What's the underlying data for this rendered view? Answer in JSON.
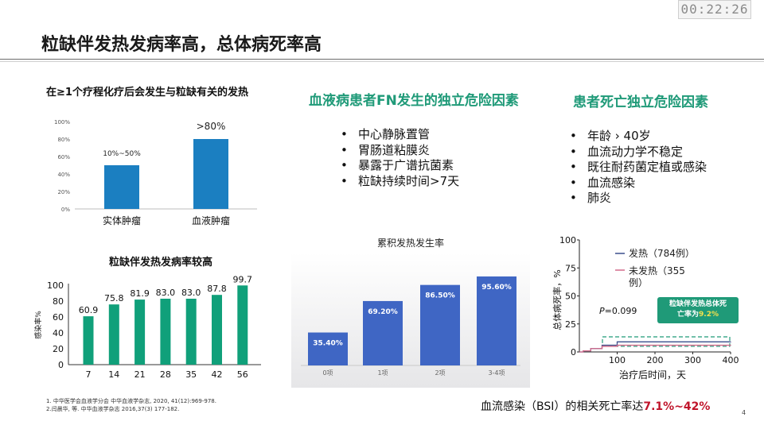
{
  "timer": "00:22:26",
  "title": "粒缺伴发热发病率高，总体病死率高",
  "chart1": {
    "subtitle": "在≥1个疗程化疗后会发生与粒缺有关的发热",
    "chart_data": {
      "type": "bar",
      "categories": [
        "实体肿瘤",
        "血液肿瘤"
      ],
      "values": [
        50,
        80
      ],
      "labels": [
        "10%~50%",
        ">80%"
      ],
      "yticks": [
        "0%",
        "20%",
        "40%",
        "60%",
        "80%",
        "100%"
      ],
      "ylim": [
        0,
        100
      ],
      "color": "#1b7fc1"
    }
  },
  "chart2": {
    "chart_data": {
      "type": "bar",
      "title": "粒缺伴发热发病率较高",
      "categories": [
        "7",
        "14",
        "21",
        "28",
        "35",
        "42",
        "56"
      ],
      "values": [
        60.9,
        75.8,
        81.9,
        83.0,
        83.0,
        87.8,
        99.7
      ],
      "labels": [
        "60.9",
        "75.8",
        "81.9",
        "83.0",
        "83.0",
        "87.8",
        "99.7"
      ],
      "ylabel": "感染率%",
      "yticks": [
        "0",
        "20",
        "40",
        "60",
        "80",
        "100"
      ],
      "ylim": [
        0,
        100
      ],
      "color": "#10a07a"
    }
  },
  "fn_risk": {
    "heading": "血液病患者FN发生的独立危险因素",
    "items": [
      "中心静脉置管",
      "胃肠道粘膜炎",
      "暴露于广谱抗菌素",
      "粒缺持续时间>7天"
    ]
  },
  "death_risk": {
    "heading": "患者死亡独立危险因素",
    "items": [
      "年龄 › 40岁",
      "血流动力学不稳定",
      "既往耐药菌定植或感染",
      "血流感染",
      "肺炎"
    ]
  },
  "chart3": {
    "chart_data": {
      "type": "bar",
      "title": "累积发热发生率",
      "categories": [
        "0项",
        "1项",
        "2项",
        "3-4项"
      ],
      "values": [
        35.4,
        69.2,
        86.5,
        95.6
      ],
      "labels": [
        "35.40%",
        "69.20%",
        "86.50%",
        "95.60%"
      ],
      "ylim": [
        0,
        100
      ],
      "color": "#3f66c4"
    }
  },
  "chart4": {
    "chart_data": {
      "type": "line",
      "xlabel": "治疗后时间，天",
      "ylabel": "总体病死率，%",
      "xticks": [
        "100",
        "200",
        "300",
        "400"
      ],
      "yticks": [
        "0",
        "25",
        "50",
        "75",
        "100"
      ],
      "xlim": [
        0,
        400
      ],
      "ylim": [
        0,
        100
      ],
      "series": [
        {
          "name": "发热（784例）",
          "color": "#3a4f8c",
          "x": [
            0,
            10,
            30,
            60,
            100,
            400
          ],
          "y": [
            0,
            1,
            3,
            6,
            9,
            9.2
          ]
        },
        {
          "name": "未发热（355例）",
          "color": "#d36a8a",
          "x": [
            0,
            10,
            30,
            60,
            100,
            400
          ],
          "y": [
            0,
            1,
            3,
            5,
            6,
            6.5
          ]
        }
      ],
      "pvalue": "P=0.099"
    },
    "callout_line1": "粒缺伴发热总体死",
    "callout_line2": "亡率为",
    "callout_value": "9.2%"
  },
  "references": [
    "1. 中华医学会血液学分会  中华血液学杂志, 2020, 41(12):969-978.",
    "2.闫晨华, 等. 中华血液学杂志 2016,37(3) 177-182."
  ],
  "bsi": {
    "text": "血流感染（BSI）的相关死亡率达",
    "value": "7.1%~42%"
  },
  "page_number": "4"
}
